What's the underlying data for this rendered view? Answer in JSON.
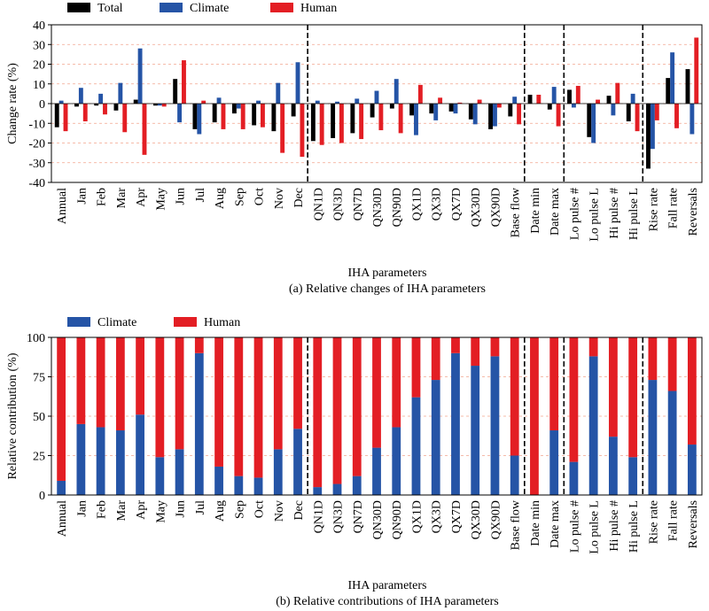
{
  "colors": {
    "total": "#000000",
    "climate": "#2554a6",
    "human": "#e31e24",
    "grid": "#f2a58e"
  },
  "categories": [
    "Annual",
    "Jan",
    "Feb",
    "Mar",
    "Apr",
    "May",
    "Jun",
    "Jul",
    "Aug",
    "Sep",
    "Oct",
    "Nov",
    "Dec",
    "QN1D",
    "QN3D",
    "QN7D",
    "QN30D",
    "QN90D",
    "QX1D",
    "QX3D",
    "QX7D",
    "QX30D",
    "QX90D",
    "Base flow",
    "Date min",
    "Date max",
    "Lo pulse #",
    "Lo pulse L",
    "Hi pulse #",
    "Hi pulse L",
    "Rise rate",
    "Fall rate",
    "Reversals"
  ],
  "chart_data": [
    {
      "type": "bar",
      "ylabel": "Change rate (%)",
      "xlabel": "IHA parameters",
      "caption": "(a) Relative changes of IHA parameters",
      "ylim": [
        -40,
        40
      ],
      "yticks": [
        -40,
        -30,
        -20,
        -10,
        0,
        10,
        20,
        30,
        40
      ],
      "grid": true,
      "legend_position": "top-left",
      "group_dividers_after": [
        "Dec",
        "Base flow",
        "Date max",
        "Hi pulse L"
      ],
      "series": [
        {
          "name": "Total",
          "values": [
            -12,
            -1.5,
            -1,
            -3.5,
            2,
            -1,
            12.5,
            -13,
            -9.5,
            -5,
            -11,
            -14,
            -6.5,
            -19,
            -17.5,
            -15,
            -7,
            -2.5,
            -6,
            -5,
            -4,
            -8,
            -13,
            -6.5,
            4.5,
            -3,
            7,
            -17,
            4,
            -9,
            -33,
            13,
            17.5
          ]
        },
        {
          "name": "Climate",
          "values": [
            1.5,
            8,
            5,
            10.5,
            28,
            -1,
            -9.5,
            -15.5,
            3,
            -2.5,
            1.5,
            10.5,
            21,
            1.5,
            1,
            2.5,
            6.5,
            12.5,
            -16,
            -8.5,
            -5,
            -10.5,
            -11.5,
            3.5,
            0,
            8.5,
            -2,
            -20,
            -6,
            5,
            -23,
            26,
            -15.5
          ]
        },
        {
          "name": "Human",
          "values": [
            -14,
            -9,
            -5.5,
            -14.5,
            -26,
            -1.5,
            22,
            1.5,
            -13,
            -13,
            -12,
            -25,
            -27,
            -21,
            -20,
            -18,
            -13.5,
            -15,
            9.5,
            3,
            0.5,
            2,
            -2,
            -10.5,
            4.5,
            -11.5,
            9,
            2,
            10.5,
            -14,
            -8.5,
            -12.5,
            33.5
          ]
        }
      ]
    },
    {
      "type": "bar",
      "stacked": true,
      "ylabel": "Relative contribution (%)",
      "xlabel": "IHA parameters",
      "caption": "(b) Relative contributions of IHA parameters",
      "ylim": [
        0,
        100
      ],
      "yticks": [
        0,
        25,
        50,
        75,
        100
      ],
      "grid": true,
      "legend_position": "top-left",
      "group_dividers_after": [
        "Dec",
        "Base flow",
        "Date max",
        "Hi pulse L"
      ],
      "series": [
        {
          "name": "Climate",
          "values": [
            9,
            45,
            43,
            41,
            51,
            24,
            29,
            90,
            18,
            12,
            11,
            29,
            42,
            5,
            7,
            12,
            30,
            43,
            62,
            73,
            90,
            82,
            88,
            25,
            0,
            41,
            21,
            88,
            37,
            24,
            73,
            66,
            32
          ]
        },
        {
          "name": "Human",
          "values": [
            91,
            55,
            57,
            59,
            49,
            76,
            71,
            10,
            82,
            88,
            89,
            71,
            58,
            95,
            93,
            88,
            70,
            57,
            38,
            27,
            10,
            18,
            12,
            75,
            100,
            59,
            79,
            12,
            63,
            76,
            27,
            34,
            68
          ]
        }
      ]
    }
  ]
}
